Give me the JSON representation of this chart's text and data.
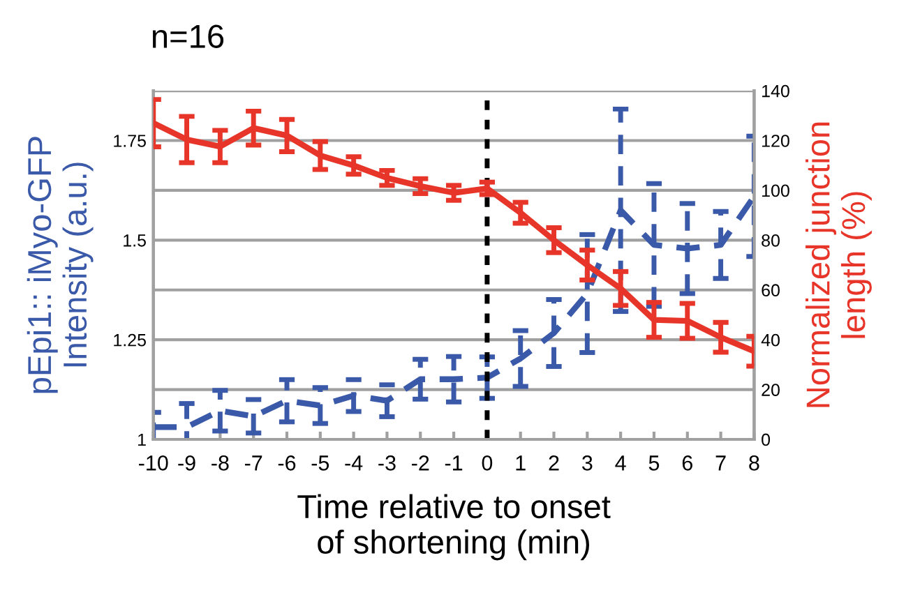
{
  "chart_data": {
    "type": "line",
    "title": "n=16",
    "xlabel": "Time relative to onset\nof shortening (min)",
    "ylabel": "pEpi1:: iMyo-GFP\nIntensity (a.u.)",
    "y2label": "Normalized junction\nlength (%)",
    "x": [
      -10,
      -9,
      -8,
      -7,
      -6,
      -5,
      -4,
      -3,
      -2,
      -1,
      0,
      1,
      2,
      3,
      4,
      5,
      6,
      7,
      8
    ],
    "series": [
      {
        "color": "#3a59a8",
        "line_style": "dashed",
        "values": [
          1.031,
          1.031,
          1.072,
          1.058,
          1.097,
          1.085,
          1.11,
          1.097,
          1.151,
          1.151,
          1.155,
          1.203,
          1.267,
          1.366,
          1.575,
          1.488,
          1.479,
          1.488,
          1.61
        ],
        "errors": [
          0.037,
          0.059,
          0.051,
          0.042,
          0.053,
          0.045,
          0.04,
          0.04,
          0.05,
          0.057,
          0.052,
          0.07,
          0.084,
          0.148,
          0.254,
          0.154,
          0.113,
          0.084,
          0.151
        ]
      },
      {
        "color": "#e8352a",
        "line_style": "solid",
        "axis": "y2",
        "values": [
          127,
          120.4,
          117.6,
          125,
          122,
          114,
          110,
          105,
          101.7,
          99,
          100.8,
          91,
          80,
          70,
          60.6,
          48,
          47.6,
          41,
          35.4
        ],
        "errors": [
          9.5,
          9.3,
          6.5,
          6.8,
          6.5,
          5.6,
          3.5,
          3,
          3,
          3,
          2.5,
          4.2,
          5,
          6,
          6.8,
          7,
          7,
          6,
          6
        ]
      }
    ],
    "xlim": [
      -10,
      8
    ],
    "xticks": [
      -10,
      -9,
      -8,
      -7,
      -6,
      -5,
      -4,
      -3,
      -2,
      -1,
      0,
      1,
      2,
      3,
      4,
      5,
      6,
      7,
      8
    ],
    "ylim": [
      1,
      1.875
    ],
    "yticks": [
      1,
      {
        "value": 1.125,
        "label": null
      },
      1.25,
      {
        "value": 1.375,
        "label": null
      },
      1.5,
      {
        "value": 1.625,
        "label": null
      },
      1.75,
      {
        "value": 1.875,
        "label": null
      }
    ],
    "y2lim": [
      0,
      140
    ],
    "y2ticks": [
      0,
      20,
      40,
      60,
      80,
      100,
      120,
      140
    ],
    "ref_lines": [
      {
        "axis": "x",
        "value": 0,
        "color": "#000000",
        "line_style": "dotted"
      }
    ],
    "grid": "y",
    "marker": "none"
  }
}
